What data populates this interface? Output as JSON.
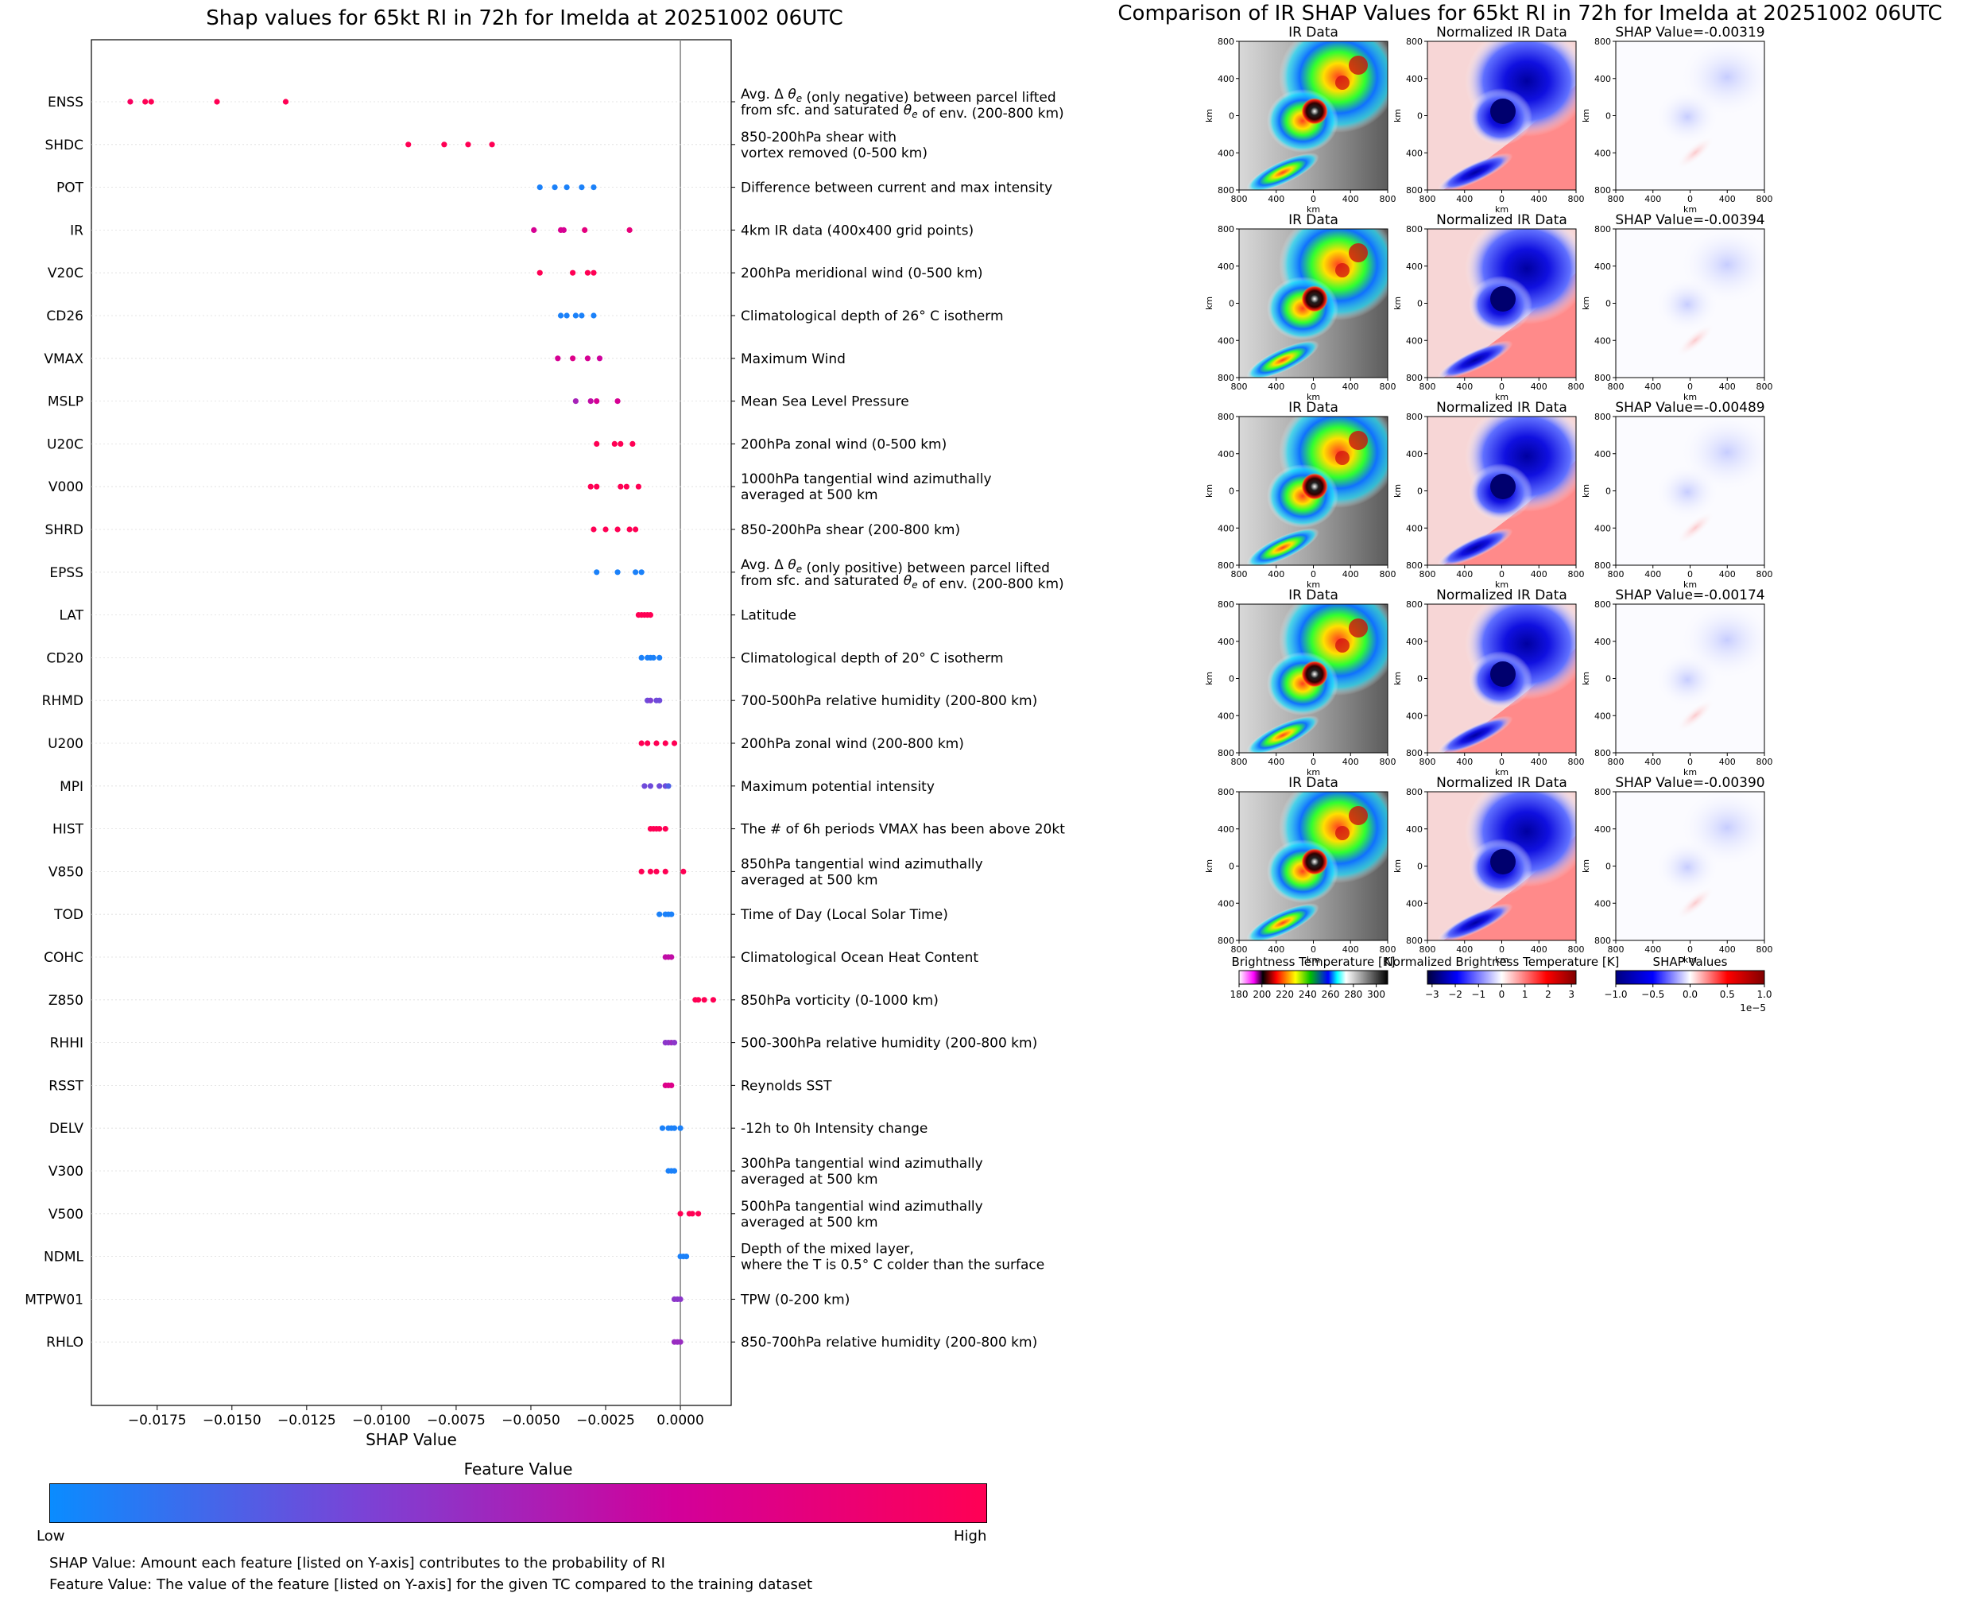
{
  "left": {
    "title": "Shap values for 65kt RI in 72h for Imelda at 20251002 06UTC",
    "xlabel": "SHAP Value",
    "colorbar": {
      "title": "Feature Value",
      "low": "Low",
      "high": "High",
      "colors": [
        "#0a8cff",
        "#7a43d6",
        "#d2009a",
        "#ff0054"
      ]
    },
    "notes": [
      "SHAP Value: Amount each feature [listed on Y-axis] contributes to the probability of RI",
      "Feature Value: The value of the feature [listed on Y-axis] for the given TC compared to the training dataset"
    ]
  },
  "right": {
    "title": "Comparison of IR SHAP Values for 65kt RI in 72h for Imelda at 20251002 06UTC",
    "col_titles": [
      "IR Data",
      "Normalized IR Data"
    ],
    "shap_titles": [
      "SHAP Value=-0.00319",
      "SHAP Value=-0.00394",
      "SHAP Value=-0.00489",
      "SHAP Value=-0.00174",
      "SHAP Value=-0.00390"
    ],
    "axis_unit": "km",
    "ticks": [
      "800",
      "400",
      "0",
      "400",
      "800"
    ],
    "colorbars": [
      {
        "title": "Brightness Temperature [K]",
        "ticks": [
          "180",
          "200",
          "220",
          "240",
          "260",
          "280",
          "300"
        ],
        "min": 180,
        "max": 310
      },
      {
        "title": "Normalized Brightness Temperature [K]",
        "ticks": [
          "−3",
          "−2",
          "−1",
          "0",
          "1",
          "2",
          "3"
        ],
        "min": -3.2,
        "max": 3.2
      },
      {
        "title": "SHAP Values",
        "ticks": [
          "−1.0",
          "−0.5",
          "0.0",
          "0.5",
          "1.0"
        ],
        "min": -1.0,
        "max": 1.0,
        "offset": "1e−5"
      }
    ]
  },
  "chart_data": {
    "type": "scatter",
    "title": "Shap values for 65kt RI in 72h for Imelda at 20251002 06UTC",
    "xlabel": "SHAP Value",
    "xlim": [
      -0.0197,
      0.0017
    ],
    "xticks": [
      -0.0175,
      -0.015,
      -0.0125,
      -0.01,
      -0.0075,
      -0.005,
      -0.0025,
      0.0
    ],
    "xtick_labels": [
      "−0.0175",
      "−0.0150",
      "−0.0125",
      "−0.0100",
      "−0.0075",
      "−0.0050",
      "−0.0025",
      "0.0000"
    ],
    "features": [
      {
        "name": "ENSS",
        "desc": [
          "Avg. Δ θe (only negative) between parcel lifted",
          "from sfc. and saturated θe of env. (200-800 km)"
        ],
        "shap": [
          -0.0184,
          -0.0179,
          -0.0177,
          -0.0155,
          -0.0132
        ],
        "value": [
          0.95,
          1,
          1,
          1,
          1
        ]
      },
      {
        "name": "SHDC",
        "desc": [
          "850-200hPa shear with",
          "vortex removed (0-500 km)"
        ],
        "shap": [
          -0.0091,
          -0.0079,
          -0.0071,
          -0.0063
        ],
        "value": [
          1,
          1,
          1,
          1
        ]
      },
      {
        "name": "POT",
        "desc": [
          "Difference between current and max intensity"
        ],
        "shap": [
          -0.0047,
          -0.0042,
          -0.0038,
          -0.0033,
          -0.0029
        ],
        "value": [
          0.05,
          0.05,
          0.05,
          0.05,
          0.05
        ]
      },
      {
        "name": "IR",
        "desc": [
          "4km IR data (400x400 grid points)"
        ],
        "shap": [
          -0.0049,
          -0.004,
          -0.0039,
          -0.0032,
          -0.0017
        ],
        "value": [
          0.7,
          0.72,
          0.7,
          0.8,
          0.82
        ]
      },
      {
        "name": "V20C",
        "desc": [
          "200hPa meridional wind (0-500 km)"
        ],
        "shap": [
          -0.0047,
          -0.0036,
          -0.0031,
          -0.0029
        ],
        "value": [
          1,
          1,
          1,
          1
        ]
      },
      {
        "name": "CD26",
        "desc": [
          "Climatological depth of 26° C isotherm"
        ],
        "shap": [
          -0.004,
          -0.0038,
          -0.0035,
          -0.0033,
          -0.0029
        ],
        "value": [
          0.05,
          0.05,
          0.05,
          0.05,
          0.05
        ]
      },
      {
        "name": "VMAX",
        "desc": [
          "Maximum Wind"
        ],
        "shap": [
          -0.0041,
          -0.0036,
          -0.0031,
          -0.0027
        ],
        "value": [
          0.7,
          0.75,
          0.7,
          0.65
        ]
      },
      {
        "name": "MSLP",
        "desc": [
          "Mean Sea Level Pressure"
        ],
        "shap": [
          -0.0035,
          -0.003,
          -0.0028,
          -0.0021
        ],
        "value": [
          0.5,
          0.6,
          0.7,
          0.7
        ]
      },
      {
        "name": "U20C",
        "desc": [
          "200hPa zonal wind (0-500 km)"
        ],
        "shap": [
          -0.0028,
          -0.0022,
          -0.002,
          -0.0016
        ],
        "value": [
          1,
          1,
          1,
          1
        ]
      },
      {
        "name": "V000",
        "desc": [
          "1000hPa tangential wind azimuthally",
          "averaged at 500 km"
        ],
        "shap": [
          -0.003,
          -0.0028,
          -0.002,
          -0.0018,
          -0.0014
        ],
        "value": [
          1,
          1,
          1,
          1,
          1
        ]
      },
      {
        "name": "SHRD",
        "desc": [
          "850-200hPa shear (200-800 km)"
        ],
        "shap": [
          -0.0029,
          -0.0025,
          -0.0021,
          -0.0017,
          -0.0015
        ],
        "value": [
          1,
          1,
          1,
          1,
          1
        ]
      },
      {
        "name": "EPSS",
        "desc": [
          "Avg. Δ θe (only positive) between parcel lifted",
          "from sfc. and saturated θe of env. (200-800 km)"
        ],
        "shap": [
          -0.0028,
          -0.0021,
          -0.0015,
          -0.0013
        ],
        "value": [
          0.05,
          0.05,
          0.05,
          0.05
        ]
      },
      {
        "name": "LAT",
        "desc": [
          "Latitude"
        ],
        "shap": [
          -0.0014,
          -0.0013,
          -0.0012,
          -0.0011,
          -0.001
        ],
        "value": [
          1,
          1,
          1,
          1,
          1
        ]
      },
      {
        "name": "CD20",
        "desc": [
          "Climatological depth of 20° C isotherm"
        ],
        "shap": [
          -0.0013,
          -0.0011,
          -0.001,
          -0.0009,
          -0.0007
        ],
        "value": [
          0.05,
          0.05,
          0.05,
          0.05,
          0.05
        ]
      },
      {
        "name": "RHMD",
        "desc": [
          "700-500hPa relative humidity (200-800 km)"
        ],
        "shap": [
          -0.0011,
          -0.001,
          -0.0008,
          -0.0007
        ],
        "value": [
          0.3,
          0.35,
          0.3,
          0.3
        ]
      },
      {
        "name": "U200",
        "desc": [
          "200hPa zonal wind (200-800 km)"
        ],
        "shap": [
          -0.0013,
          -0.0011,
          -0.0008,
          -0.0005,
          -0.0002
        ],
        "value": [
          1,
          1,
          1,
          1,
          1
        ]
      },
      {
        "name": "MPI",
        "desc": [
          "Maximum potential intensity"
        ],
        "shap": [
          -0.0012,
          -0.001,
          -0.0007,
          -0.0005,
          -0.0004
        ],
        "value": [
          0.3,
          0.3,
          0.3,
          0.3,
          0.2
        ]
      },
      {
        "name": "HIST",
        "desc": [
          "The # of 6h periods VMAX has been above 20kt"
        ],
        "shap": [
          -0.001,
          -0.0009,
          -0.0008,
          -0.0007,
          -0.0005
        ],
        "value": [
          1,
          1,
          1,
          1,
          1
        ]
      },
      {
        "name": "V850",
        "desc": [
          "850hPa tangential wind azimuthally",
          "averaged at 500 km"
        ],
        "shap": [
          -0.0013,
          -0.001,
          -0.0008,
          -0.0005,
          0.0001
        ],
        "value": [
          1,
          1,
          1,
          1,
          1
        ]
      },
      {
        "name": "TOD",
        "desc": [
          "Time of Day (Local Solar Time)"
        ],
        "shap": [
          -0.0007,
          -0.0005,
          -0.0004,
          -0.0003
        ],
        "value": [
          0.05,
          0.05,
          0.05,
          0.05
        ]
      },
      {
        "name": "COHC",
        "desc": [
          "Climatological Ocean Heat Content"
        ],
        "shap": [
          -0.0005,
          -0.0004,
          -0.0003
        ],
        "value": [
          0.6,
          0.6,
          0.6
        ]
      },
      {
        "name": "Z850",
        "desc": [
          "850hPa vorticity (0-1000 km)"
        ],
        "shap": [
          0.0005,
          0.0006,
          0.0008,
          0.0011
        ],
        "value": [
          1,
          1,
          1,
          1
        ]
      },
      {
        "name": "RHHI",
        "desc": [
          "500-300hPa relative humidity (200-800 km)"
        ],
        "shap": [
          -0.0005,
          -0.0004,
          -0.0003,
          -0.0002
        ],
        "value": [
          0.4,
          0.4,
          0.45,
          0.4
        ]
      },
      {
        "name": "RSST",
        "desc": [
          "Reynolds SST"
        ],
        "shap": [
          -0.0005,
          -0.0004,
          -0.0003
        ],
        "value": [
          0.75,
          0.75,
          0.75
        ]
      },
      {
        "name": "DELV",
        "desc": [
          "-12h to 0h Intensity change"
        ],
        "shap": [
          -0.0006,
          -0.0004,
          -0.0003,
          -0.0002,
          0.0
        ],
        "value": [
          0.05,
          0.05,
          0.05,
          0.05,
          0.05
        ]
      },
      {
        "name": "V300",
        "desc": [
          "300hPa tangential wind azimuthally",
          "averaged at 500 km"
        ],
        "shap": [
          -0.0004,
          -0.0003,
          -0.0002
        ],
        "value": [
          0.05,
          0.05,
          0.05
        ]
      },
      {
        "name": "V500",
        "desc": [
          "500hPa tangential wind azimuthally",
          "averaged at 500 km"
        ],
        "shap": [
          0.0,
          0.0003,
          0.0004,
          0.0006
        ],
        "value": [
          1,
          1,
          1,
          1
        ]
      },
      {
        "name": "NDML",
        "desc": [
          "Depth of the mixed layer,",
          "where the T is 0.5° C colder than the surface"
        ],
        "shap": [
          0.0,
          0.0001,
          0.0002
        ],
        "value": [
          0.05,
          0.05,
          0.05
        ]
      },
      {
        "name": "MTPW01",
        "desc": [
          "TPW (0-200 km)"
        ],
        "shap": [
          -0.0002,
          -0.0001,
          0.0
        ],
        "value": [
          0.4,
          0.4,
          0.4
        ]
      },
      {
        "name": "RHLO",
        "desc": [
          "850-700hPa relative humidity (200-800 km)"
        ],
        "shap": [
          -0.0002,
          -0.0001,
          0.0
        ],
        "value": [
          0.45,
          0.45,
          0.45
        ]
      }
    ]
  }
}
